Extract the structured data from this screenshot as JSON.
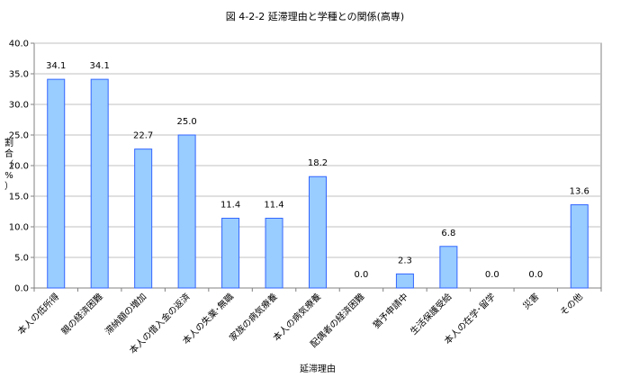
{
  "chart_data": {
    "type": "bar",
    "title": "図 4-2-2 延滞理由と学種との関係(高専)",
    "xlabel": "延滞理由",
    "ylabel": "割合（%）",
    "ylim": [
      0,
      40
    ],
    "yticks": [
      "0.0",
      "5.0",
      "10.0",
      "15.0",
      "20.0",
      "25.0",
      "30.0",
      "35.0",
      "40.0"
    ],
    "grid": true,
    "legend": "none",
    "categories": [
      "本人の低所得",
      "親の経済困難",
      "滞納額の増加",
      "本人の借入金の返済",
      "本人の失業･無職",
      "家族の病気療養",
      "本人の病気療養",
      "配偶者の経済困難",
      "猶予申請中",
      "生活保護受給",
      "本人の在学･留学",
      "災害",
      "その他"
    ],
    "values": [
      34.1,
      34.1,
      22.7,
      25.0,
      11.4,
      11.4,
      18.2,
      0.0,
      2.3,
      6.8,
      0.0,
      0.0,
      13.6
    ],
    "labels": [
      "34.1",
      "34.1",
      "22.7",
      "25.0",
      "11.4",
      "11.4",
      "18.2",
      "0.0",
      "2.3",
      "6.8",
      "0.0",
      "0.0",
      "13.6"
    ],
    "colors": {
      "bar_fill": "#99ccff",
      "bar_stroke": "#3366ff",
      "grid": "#c0c0c0",
      "axis": "#808080"
    }
  }
}
